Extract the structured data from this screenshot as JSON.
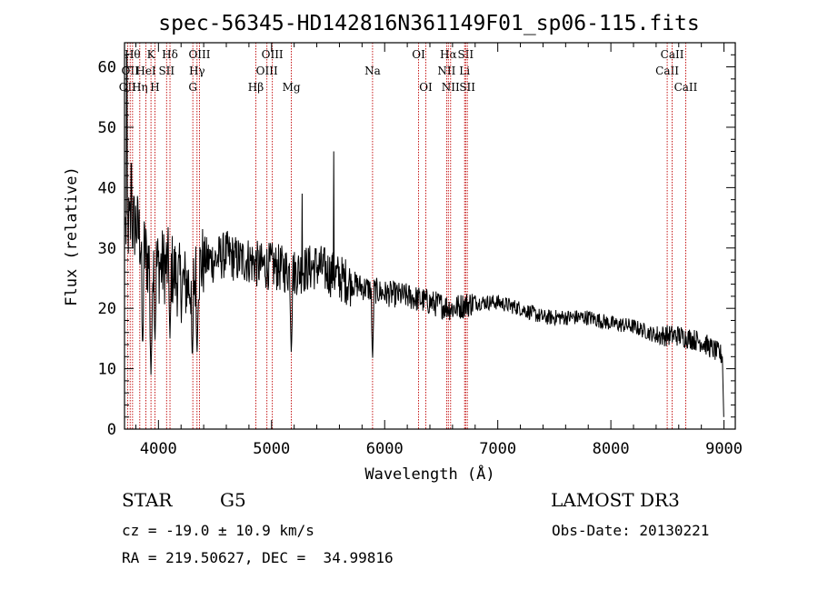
{
  "chart_data": {
    "type": "line",
    "title": "spec-56345-HD142816N361149F01_sp06-115.fits",
    "xlabel": "Wavelength (Å)",
    "ylabel": "Flux (relative)",
    "xlim": [
      3700,
      9100
    ],
    "ylim": [
      0,
      64
    ],
    "xticks": [
      4000,
      5000,
      6000,
      7000,
      8000,
      9000
    ],
    "yticks": [
      0,
      10,
      20,
      30,
      40,
      50,
      60
    ],
    "spectral_lines": [
      {
        "wavelength": 3727,
        "label": "OII",
        "row": 2
      },
      {
        "wavelength": 3750,
        "label": "OII",
        "row": 1
      },
      {
        "wavelength": 3771,
        "label": "Hθ",
        "row": 0
      },
      {
        "wavelength": 3835,
        "label": "Hη",
        "row": 2
      },
      {
        "wavelength": 3889,
        "label": "HeI",
        "row": 1
      },
      {
        "wavelength": 3934,
        "label": "K",
        "row": 0
      },
      {
        "wavelength": 3969,
        "label": "H",
        "row": 2
      },
      {
        "wavelength": 4072,
        "label": "SII",
        "row": 1
      },
      {
        "wavelength": 4102,
        "label": "Hδ",
        "row": 0
      },
      {
        "wavelength": 4304,
        "label": "G",
        "row": 2
      },
      {
        "wavelength": 4341,
        "label": "Hγ",
        "row": 1
      },
      {
        "wavelength": 4363,
        "label": "OIII",
        "row": 0
      },
      {
        "wavelength": 4861,
        "label": "Hβ",
        "row": 2
      },
      {
        "wavelength": 4959,
        "label": "OIII",
        "row": 1
      },
      {
        "wavelength": 5007,
        "label": "OIII",
        "row": 0
      },
      {
        "wavelength": 5175,
        "label": "Mg",
        "row": 2
      },
      {
        "wavelength": 5893,
        "label": "Na",
        "row": 1
      },
      {
        "wavelength": 6300,
        "label": "OI",
        "row": 0
      },
      {
        "wavelength": 6364,
        "label": "OI",
        "row": 2
      },
      {
        "wavelength": 6548,
        "label": "NII",
        "row": 1
      },
      {
        "wavelength": 6563,
        "label": "Hα",
        "row": 0
      },
      {
        "wavelength": 6583,
        "label": "NII",
        "row": 2
      },
      {
        "wavelength": 6707,
        "label": "Li",
        "row": 1
      },
      {
        "wavelength": 6716,
        "label": "SII",
        "row": 0
      },
      {
        "wavelength": 6731,
        "label": "SII",
        "row": 2
      },
      {
        "wavelength": 8498,
        "label": "CaII",
        "row": 1
      },
      {
        "wavelength": 8542,
        "label": "CaII",
        "row": 0
      },
      {
        "wavelength": 8662,
        "label": "CaII",
        "row": 2
      }
    ],
    "continuum": [
      [
        3700,
        33
      ],
      [
        3800,
        34
      ],
      [
        3900,
        28
      ],
      [
        4000,
        27
      ],
      [
        4100,
        27
      ],
      [
        4200,
        24
      ],
      [
        4300,
        24
      ],
      [
        4400,
        28
      ],
      [
        4500,
        28
      ],
      [
        4600,
        29
      ],
      [
        4700,
        28
      ],
      [
        4800,
        28
      ],
      [
        4900,
        27
      ],
      [
        5000,
        27
      ],
      [
        5200,
        26
      ],
      [
        5400,
        27
      ],
      [
        5600,
        25
      ],
      [
        5800,
        23.5
      ],
      [
        6000,
        22.5
      ],
      [
        6200,
        22
      ],
      [
        6400,
        21
      ],
      [
        6600,
        20
      ],
      [
        6800,
        21
      ],
      [
        7000,
        21
      ],
      [
        7200,
        20
      ],
      [
        7400,
        18.5
      ],
      [
        7600,
        18.5
      ],
      [
        7800,
        18.5
      ],
      [
        8000,
        17.5
      ],
      [
        8200,
        17
      ],
      [
        8400,
        15.5
      ],
      [
        8600,
        15.5
      ],
      [
        8800,
        14.5
      ],
      [
        9000,
        12
      ]
    ],
    "absorption_dips": [
      {
        "wavelength": 3934,
        "flux": 9
      },
      {
        "wavelength": 3969,
        "flux": 14
      },
      {
        "wavelength": 3860,
        "flux": 13
      },
      {
        "wavelength": 4102,
        "flux": 15
      },
      {
        "wavelength": 4300,
        "flux": 11
      },
      {
        "wavelength": 4341,
        "flux": 12
      },
      {
        "wavelength": 5175,
        "flux": 12
      },
      {
        "wavelength": 5893,
        "flux": 11
      },
      {
        "wavelength": 8998,
        "flux": 2
      }
    ],
    "emission_spikes": [
      {
        "wavelength": 3720,
        "flux": 62
      },
      {
        "wavelength": 3760,
        "flux": 44
      },
      {
        "wavelength": 5550,
        "flux": 46
      },
      {
        "wavelength": 5270,
        "flux": 39
      }
    ]
  },
  "info": {
    "object_class": "STAR",
    "subclass": "G5",
    "survey": "LAMOST DR3",
    "redshift": "cz = -19.0 ± 10.9 km/s",
    "obs_date": "Obs-Date: 20130221",
    "coords": "RA = 219.50627, DEC =  34.99816"
  }
}
